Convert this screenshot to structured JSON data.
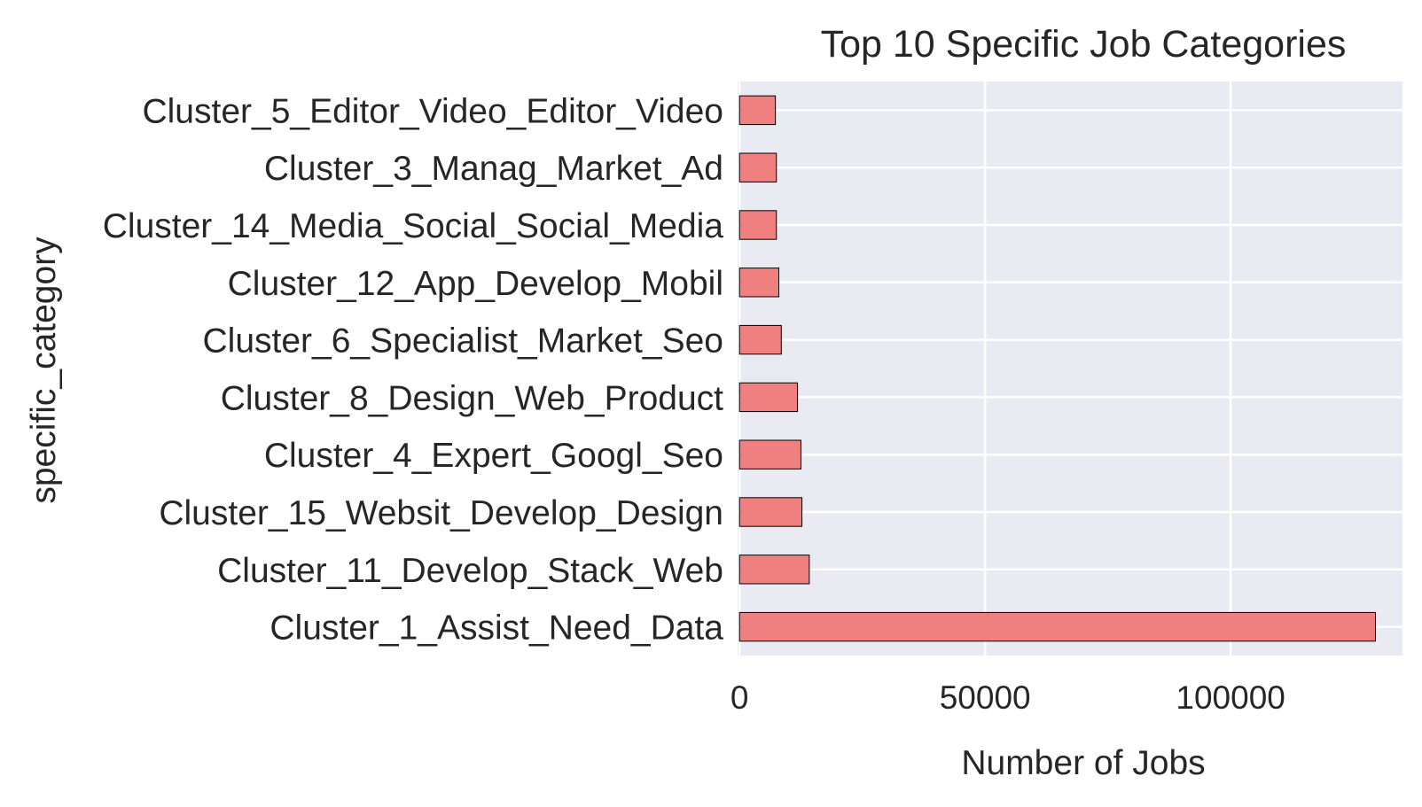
{
  "chart_data": {
    "type": "bar",
    "orientation": "horizontal",
    "title": "Top 10 Specific Job Categories",
    "xlabel": "Number of Jobs",
    "ylabel": "specific_category",
    "categories": [
      "Cluster_5_Editor_Video_Editor_Video",
      "Cluster_3_Manag_Market_Ad",
      "Cluster_14_Media_Social_Social_Media",
      "Cluster_12_App_Develop_Mobil",
      "Cluster_6_Specialist_Market_Seo",
      "Cluster_8_Design_Web_Product",
      "Cluster_4_Expert_Googl_Seo",
      "Cluster_15_Websit_Develop_Design",
      "Cluster_11_Develop_Stack_Web",
      "Cluster_1_Assist_Need_Data"
    ],
    "values": [
      7300,
      7500,
      7500,
      8000,
      8500,
      11800,
      12500,
      12700,
      14200,
      129500
    ],
    "xlim": [
      -400,
      135000
    ],
    "xticks": [
      0,
      50000,
      100000
    ],
    "xtick_labels": [
      "0",
      "50000",
      "100000"
    ],
    "grid": true,
    "bar_color": "#f08080",
    "bar_edge_color": "#000000",
    "plot_background": "#eaeaf2",
    "grid_color": "#ffffff"
  }
}
